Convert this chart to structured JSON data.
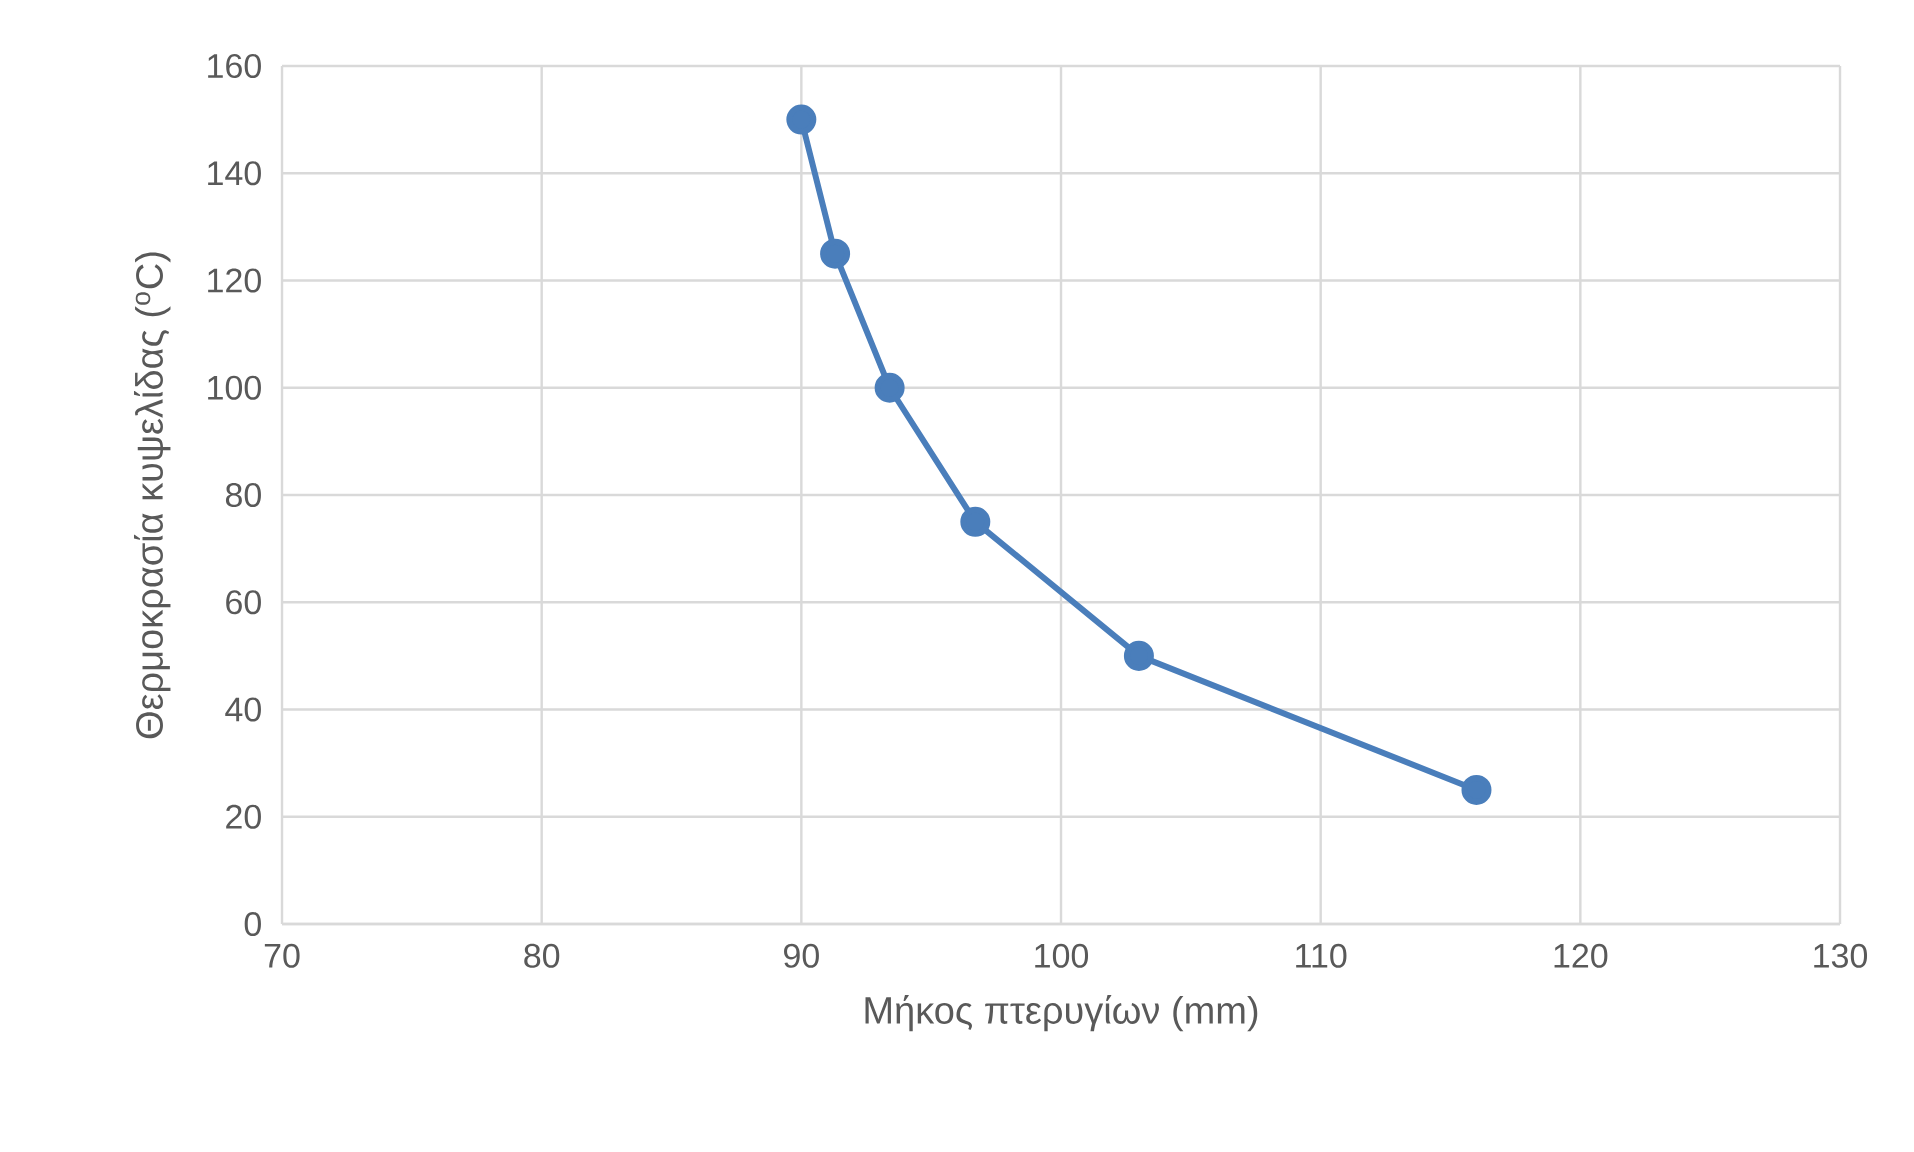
{
  "chart_data": {
    "type": "line",
    "xlabel": "Μήκος πτερυγίων (mm)",
    "ylabel": "Θερμοκρασία κυψελίδας ($^{o}$C)",
    "x": [
      90,
      91.3,
      93.4,
      96.7,
      103,
      116
    ],
    "series": [
      {
        "color": "#4a7ebb",
        "values": [
          150,
          125,
          100,
          75,
          50,
          25
        ]
      }
    ],
    "xlim": [
      70,
      130
    ],
    "ylim": [
      0,
      160
    ],
    "xticks": [
      70,
      80,
      90,
      100,
      110,
      120,
      130
    ],
    "yticks": [
      0,
      20,
      40,
      60,
      80,
      100,
      120,
      140,
      160
    ],
    "grid": true,
    "marker": "circle",
    "line_style": "solid"
  }
}
